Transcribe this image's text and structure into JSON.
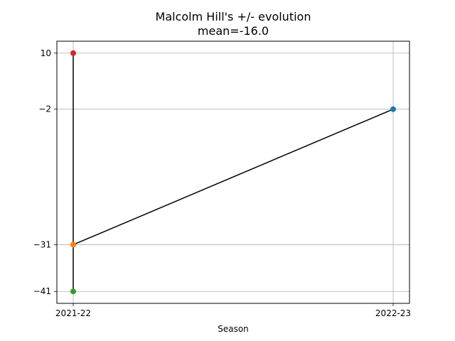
{
  "chart_data": {
    "type": "line",
    "title": "Malcolm Hill's +/- evolution",
    "subtitle": "mean=-16.0",
    "xlabel": "Season",
    "ylabel": "",
    "categories": [
      "2021-22",
      "2022-23"
    ],
    "y_ticks": [
      10,
      -2,
      -31,
      -41
    ],
    "y_tick_labels": [
      "10",
      "−2",
      "−31",
      "−41"
    ],
    "ylim": [
      -43.55,
      12.55
    ],
    "grid": true,
    "line_color": "#000000",
    "points": [
      {
        "x": "2022-23",
        "y": -2,
        "color": "#1f77b4"
      },
      {
        "x": "2021-22",
        "y": -31,
        "color": "#ff7f0e"
      },
      {
        "x": "2021-22",
        "y": -41,
        "color": "#2ca02c"
      },
      {
        "x": "2021-22",
        "y": 10,
        "color": "#d62728"
      }
    ]
  }
}
